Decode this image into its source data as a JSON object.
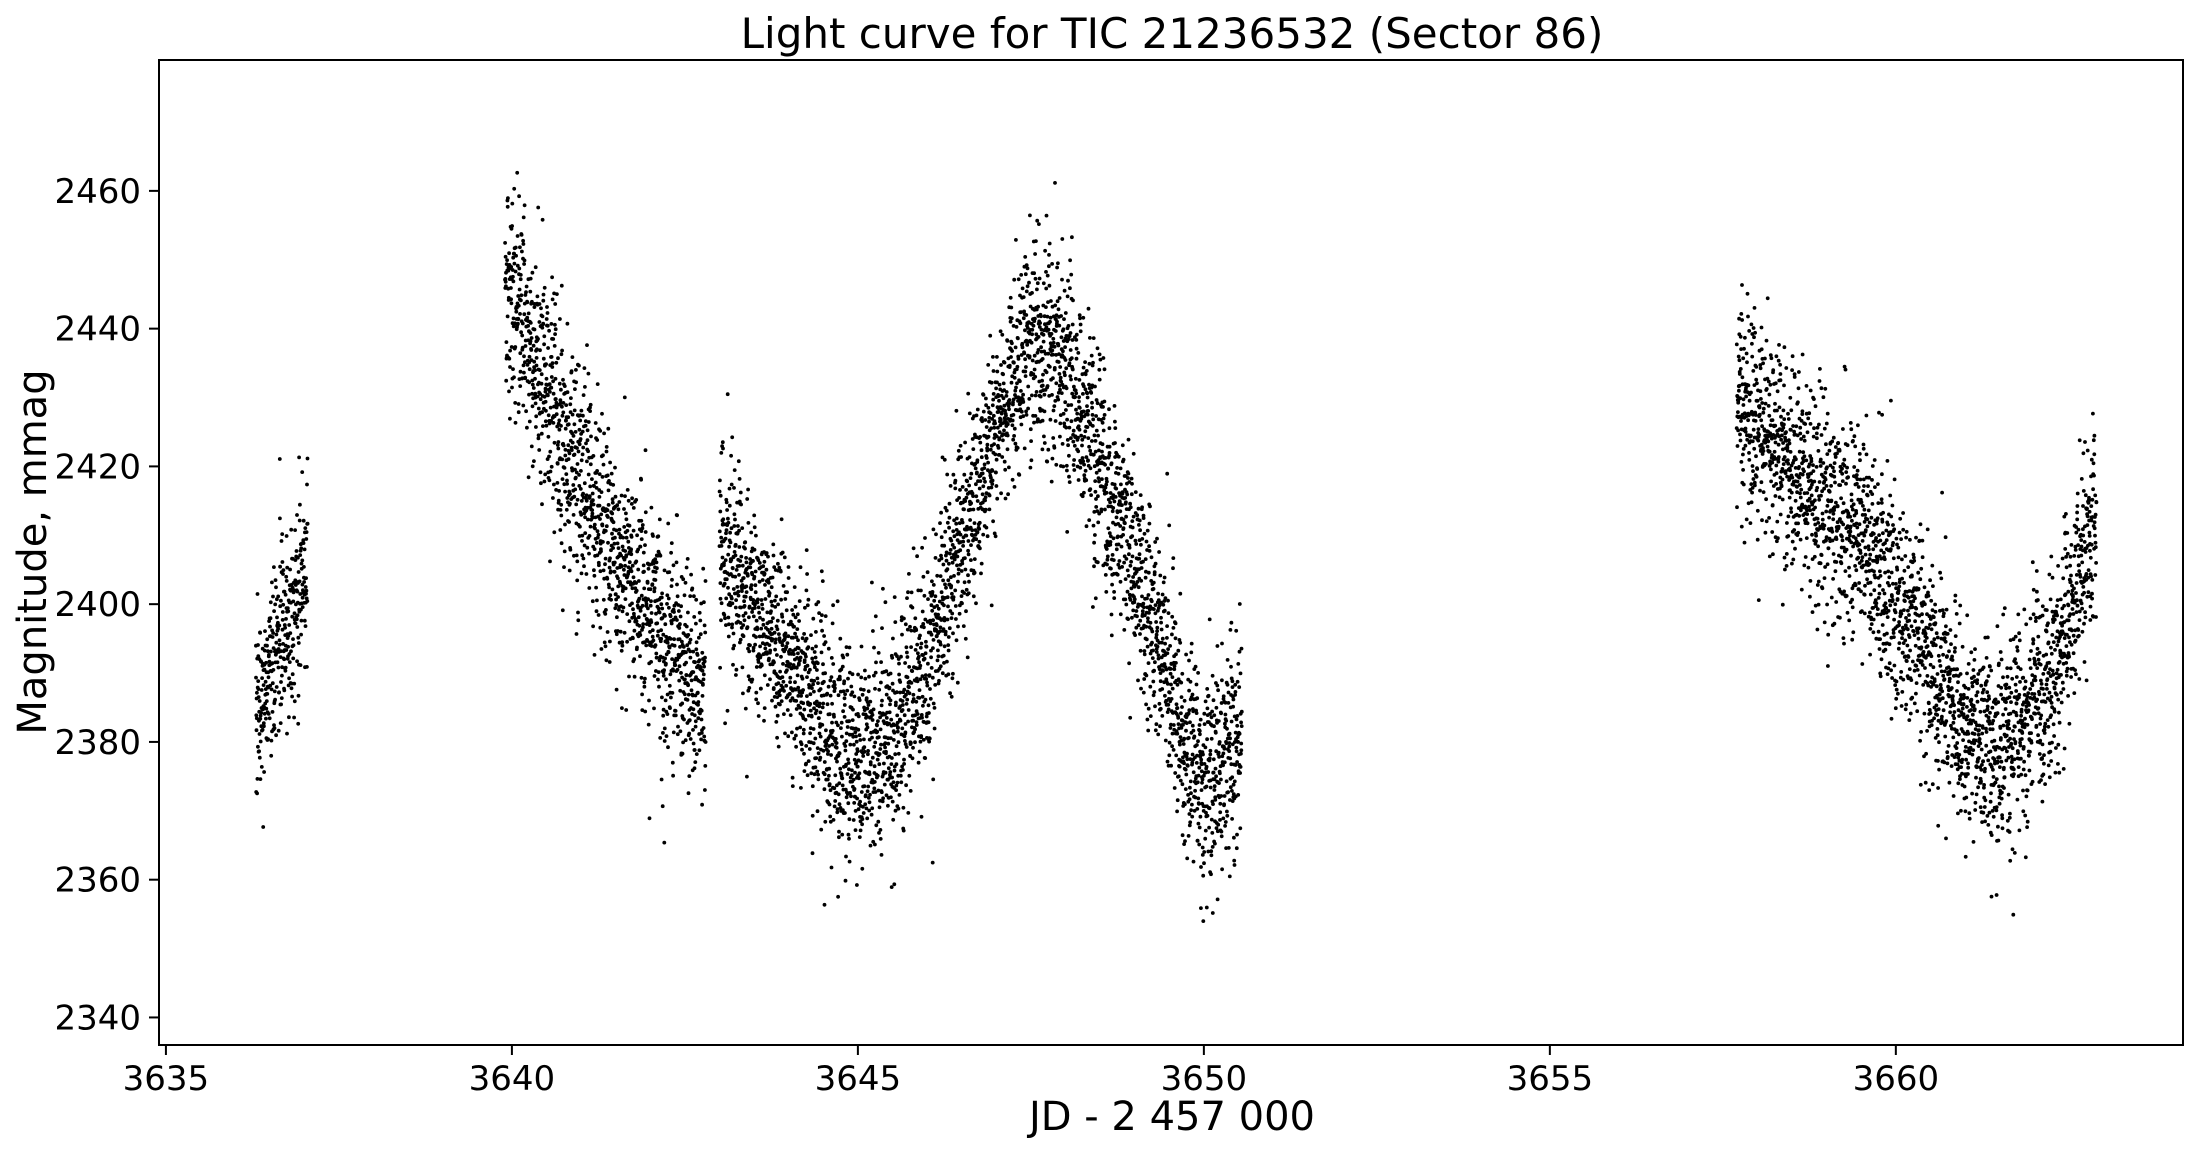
{
  "chart_data": {
    "type": "scatter",
    "title": "Light curve for TIC 21236532 (Sector 86)",
    "xlabel": "JD - 2 457 000",
    "ylabel": "Magnitude, mmag",
    "xlim": [
      3634.9,
      3664.15
    ],
    "ylim": [
      2336.0,
      2479.0
    ],
    "y_inverted": false,
    "grid": false,
    "x_ticks": [
      3635,
      3640,
      3645,
      3650,
      3655,
      3660
    ],
    "y_ticks": [
      2340,
      2360,
      2380,
      2400,
      2420,
      2440,
      2460
    ],
    "x_tick_labels": [
      "3635",
      "3640",
      "3645",
      "3650",
      "3655",
      "3660"
    ],
    "y_tick_labels": [
      "2340",
      "2360",
      "2380",
      "2400",
      "2420",
      "2440",
      "2460"
    ],
    "marker_color": "#000000",
    "series": [
      {
        "segments": [
          {
            "x_start": 3636.3,
            "x_end": 3637.05,
            "trend_x": [
              3636.3,
              3636.5,
              3636.7,
              3636.9,
              3637.05
            ],
            "trend_y": [
              2384,
              2391,
              2396,
              2399,
              2406
            ],
            "scatter": 7
          },
          {
            "x_start": 3639.9,
            "x_end": 3642.8,
            "trend_x": [
              3639.9,
              3640.1,
              3640.4,
              3640.8,
              3641.2,
              3641.6,
              3642.0,
              3642.4,
              3642.8
            ],
            "trend_y": [
              2447,
              2444,
              2435,
              2423,
              2414,
              2405,
              2398,
              2392,
              2388
            ],
            "scatter": 8
          },
          {
            "x_start": 3643.0,
            "x_end": 3650.55,
            "trend_x": [
              3643.0,
              3643.5,
              3644.0,
              3644.5,
              3645.0,
              3645.5,
              3646.0,
              3646.5,
              3647.0,
              3647.5,
              3648.0,
              3648.5,
              3649.0,
              3649.4,
              3649.8,
              3650.1,
              3650.55
            ],
            "trend_y": [
              2408,
              2400,
              2392,
              2383,
              2377,
              2381,
              2393,
              2408,
              2425,
              2439,
              2434,
              2421,
              2405,
              2393,
              2378,
              2374,
              2381
            ],
            "scatter": 7.5
          },
          {
            "x_start": 3657.7,
            "x_end": 3662.9,
            "trend_x": [
              3657.7,
              3658.0,
              3658.5,
              3659.0,
              3659.5,
              3660.0,
              3660.5,
              3661.0,
              3661.5,
              3662.0,
              3662.4,
              3662.9
            ],
            "trend_y": [
              2431,
              2425,
              2419,
              2414,
              2410,
              2401,
              2392,
              2382,
              2379,
              2384,
              2394,
              2412
            ],
            "scatter": 7.5
          }
        ]
      }
    ]
  }
}
